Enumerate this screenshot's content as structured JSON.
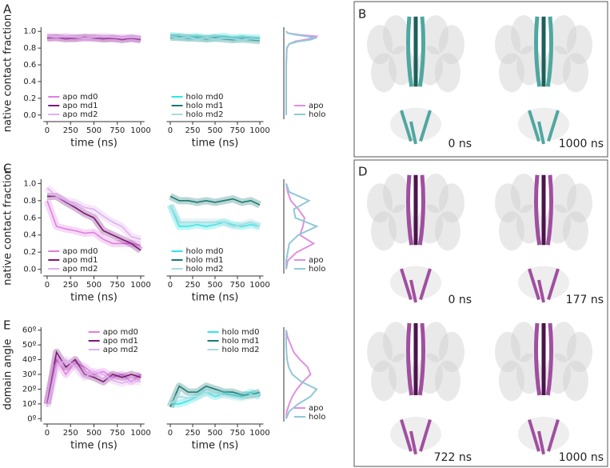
{
  "panel_labels": [
    "A",
    "B",
    "C",
    "D",
    "E"
  ],
  "structures": {
    "B": [
      "0 ns",
      "1000 ns"
    ],
    "D": [
      "0 ns",
      "177 ns",
      "722 ns",
      "1000 ns"
    ]
  },
  "chart_data": [
    {
      "type": "line",
      "x": [
        0,
        100,
        200,
        300,
        400,
        500,
        600,
        700,
        800,
        900,
        1000
      ],
      "xlim": [
        -40,
        1040
      ],
      "ylim": [
        -0.05,
        1.05
      ],
      "xticks": [
        0,
        250,
        500,
        750,
        1000
      ],
      "yticks": [
        {
          "value": 0,
          "label": "0.0"
        },
        {
          "value": 0.2,
          "label": "0.2"
        },
        {
          "value": 0.4,
          "label": "0.4"
        },
        {
          "value": 0.6,
          "label": "0.6"
        },
        {
          "value": 0.8,
          "label": "0.8"
        },
        {
          "value": 1,
          "label": "1.0"
        }
      ],
      "xlabel": "time (ns)",
      "ylabel": "native contact fraction",
      "legend": "lower left",
      "series": [
        {
          "name": "apo md0",
          "color": "#e07ee0",
          "values": [
            0.93,
            0.92,
            0.93,
            0.91,
            0.92,
            0.93,
            0.92,
            0.91,
            0.92,
            0.91,
            0.91
          ]
        },
        {
          "name": "apo md1",
          "color": "#7a1a7a",
          "values": [
            0.92,
            0.93,
            0.91,
            0.92,
            0.93,
            0.92,
            0.91,
            0.92,
            0.9,
            0.92,
            0.9
          ]
        },
        {
          "name": "apo md2",
          "color": "#e0b0f0",
          "values": [
            0.94,
            0.93,
            0.94,
            0.93,
            0.92,
            0.93,
            0.94,
            0.93,
            0.92,
            0.93,
            0.92
          ]
        }
      ]
    },
    {
      "type": "line",
      "x": [
        0,
        100,
        200,
        300,
        400,
        500,
        600,
        700,
        800,
        900,
        1000
      ],
      "xlim": [
        -40,
        1040
      ],
      "ylim": [
        -0.05,
        1.05
      ],
      "xticks": [
        0,
        250,
        500,
        750,
        1000
      ],
      "xlabel": "time (ns)",
      "legend": "lower left",
      "series": [
        {
          "name": "holo md0",
          "color": "#2ee6e6",
          "values": [
            0.95,
            0.94,
            0.93,
            0.94,
            0.92,
            0.93,
            0.94,
            0.92,
            0.93,
            0.92,
            0.92
          ]
        },
        {
          "name": "holo md1",
          "color": "#1a7a74",
          "values": [
            0.93,
            0.93,
            0.92,
            0.92,
            0.91,
            0.92,
            0.91,
            0.9,
            0.91,
            0.9,
            0.89
          ]
        },
        {
          "name": "holo md2",
          "color": "#a8dce0",
          "values": [
            0.94,
            0.92,
            0.93,
            0.91,
            0.92,
            0.91,
            0.92,
            0.91,
            0.9,
            0.91,
            0.9
          ]
        }
      ]
    },
    {
      "type": "density",
      "y": [
        0,
        0.2,
        0.4,
        0.6,
        0.8,
        0.85,
        0.88,
        0.9,
        0.92,
        0.94,
        0.96,
        0.98,
        1.0
      ],
      "xlim": [
        0,
        1.05
      ],
      "ylim": [
        -0.05,
        1.05
      ],
      "legend": "lower right",
      "series": [
        {
          "name": "apo",
          "color": "#e090e0",
          "values": [
            0,
            0,
            0,
            0,
            0.02,
            0.1,
            0.3,
            0.6,
            0.95,
            1.0,
            0.4,
            0.05,
            0
          ]
        },
        {
          "name": "holo",
          "color": "#90c8d8",
          "values": [
            0,
            0,
            0,
            0,
            0.02,
            0.1,
            0.4,
            0.8,
            0.95,
            0.7,
            0.3,
            0.05,
            0
          ]
        }
      ]
    },
    {
      "type": "line",
      "x": [
        0,
        100,
        200,
        300,
        400,
        500,
        600,
        700,
        800,
        900,
        1000
      ],
      "xlim": [
        -40,
        1040
      ],
      "ylim": [
        -0.05,
        1.05
      ],
      "xticks": [
        0,
        250,
        500,
        750,
        1000
      ],
      "yticks": [
        {
          "value": 0,
          "label": "0.0"
        },
        {
          "value": 0.2,
          "label": "0.2"
        },
        {
          "value": 0.4,
          "label": "0.4"
        },
        {
          "value": 0.6,
          "label": "0.6"
        },
        {
          "value": 0.8,
          "label": "0.8"
        },
        {
          "value": 1,
          "label": "1.0"
        }
      ],
      "xlabel": "time (ns)",
      "ylabel": "native contact fraction",
      "legend": "lower left",
      "series": [
        {
          "name": "apo md0",
          "color": "#e07ee0",
          "values": [
            0.8,
            0.5,
            0.47,
            0.45,
            0.42,
            0.43,
            0.35,
            0.3,
            0.3,
            0.3,
            0.28
          ]
        },
        {
          "name": "apo md1",
          "color": "#7a1a7a",
          "values": [
            0.85,
            0.85,
            0.78,
            0.72,
            0.65,
            0.6,
            0.45,
            0.4,
            0.35,
            0.3,
            0.22
          ]
        },
        {
          "name": "apo md2",
          "color": "#e0b0f0",
          "values": [
            0.95,
            0.85,
            0.8,
            0.78,
            0.72,
            0.7,
            0.62,
            0.55,
            0.5,
            0.38,
            0.35
          ]
        }
      ]
    },
    {
      "type": "line",
      "x": [
        0,
        100,
        200,
        300,
        400,
        500,
        600,
        700,
        800,
        900,
        1000
      ],
      "xlim": [
        -40,
        1040
      ],
      "ylim": [
        -0.05,
        1.05
      ],
      "xticks": [
        0,
        250,
        500,
        750,
        1000
      ],
      "xlabel": "time (ns)",
      "legend": "lower left",
      "series": [
        {
          "name": "holo md0",
          "color": "#2ee6e6",
          "values": [
            0.75,
            0.5,
            0.5,
            0.52,
            0.5,
            0.52,
            0.55,
            0.52,
            0.5,
            0.52,
            0.5
          ]
        },
        {
          "name": "holo md1",
          "color": "#1a7a74",
          "values": [
            0.85,
            0.8,
            0.8,
            0.78,
            0.8,
            0.78,
            0.8,
            0.82,
            0.78,
            0.8,
            0.75
          ]
        },
        {
          "name": "holo md2",
          "color": "#a8dce0",
          "values": [
            0.75,
            0.55,
            0.55,
            0.55,
            0.55,
            0.55,
            0.55,
            0.5,
            0.52,
            0.55,
            0.5
          ]
        }
      ]
    },
    {
      "type": "density",
      "y": [
        0,
        0.1,
        0.2,
        0.3,
        0.4,
        0.5,
        0.6,
        0.7,
        0.8,
        0.9,
        1.0
      ],
      "xlim": [
        0,
        1.05
      ],
      "ylim": [
        -0.05,
        1.05
      ],
      "legend": "lower right",
      "series": [
        {
          "name": "apo",
          "color": "#e090e0",
          "values": [
            0,
            0.05,
            0.35,
            0.9,
            0.45,
            0.55,
            0.6,
            0.4,
            0.15,
            0.05,
            0
          ]
        },
        {
          "name": "holo",
          "color": "#90c8d8",
          "values": [
            0,
            0,
            0.05,
            0.1,
            0.4,
            1.0,
            0.3,
            0.25,
            0.75,
            0.1,
            0
          ]
        }
      ]
    },
    {
      "type": "line",
      "x": [
        0,
        100,
        200,
        300,
        400,
        500,
        600,
        700,
        800,
        900,
        1000
      ],
      "xlim": [
        -40,
        1040
      ],
      "ylim": [
        -2,
        62
      ],
      "xticks": [
        0,
        250,
        500,
        750,
        1000
      ],
      "yticks": [
        {
          "value": 0,
          "label": "0º"
        },
        {
          "value": 10,
          "label": "10º"
        },
        {
          "value": 20,
          "label": "20º"
        },
        {
          "value": 30,
          "label": "30º"
        },
        {
          "value": 40,
          "label": "40º"
        },
        {
          "value": 50,
          "label": "50º"
        },
        {
          "value": 60,
          "label": "60º"
        }
      ],
      "xlabel": "time (ns)",
      "ylabel": "domain angle",
      "legend": "upper right",
      "series": [
        {
          "name": "apo md0",
          "color": "#e07ee0",
          "values": [
            10,
            40,
            30,
            38,
            35,
            30,
            32,
            28,
            30,
            25,
            30
          ]
        },
        {
          "name": "apo md1",
          "color": "#7a1a7a",
          "values": [
            10,
            45,
            35,
            40,
            30,
            28,
            25,
            30,
            28,
            30,
            28
          ]
        },
        {
          "name": "apo md2",
          "color": "#e0b0f0",
          "values": [
            8,
            35,
            40,
            35,
            28,
            32,
            30,
            26,
            24,
            26,
            25
          ]
        }
      ]
    },
    {
      "type": "line",
      "x": [
        0,
        100,
        200,
        300,
        400,
        500,
        600,
        700,
        800,
        900,
        1000
      ],
      "xlim": [
        -40,
        1040
      ],
      "ylim": [
        -2,
        62
      ],
      "xticks": [
        0,
        250,
        500,
        750,
        1000
      ],
      "xlabel": "time (ns)",
      "legend": "upper right",
      "series": [
        {
          "name": "holo md0",
          "color": "#2ee6e6",
          "values": [
            10,
            10,
            12,
            15,
            18,
            15,
            17,
            16,
            15,
            18,
            15
          ]
        },
        {
          "name": "holo md1",
          "color": "#1a7a74",
          "values": [
            8,
            22,
            18,
            18,
            22,
            20,
            18,
            18,
            16,
            16,
            18
          ]
        },
        {
          "name": "holo md2",
          "color": "#a8dce0",
          "values": [
            10,
            15,
            14,
            15,
            18,
            17,
            16,
            15,
            14,
            16,
            16
          ]
        }
      ]
    },
    {
      "type": "density",
      "y": [
        0,
        5,
        10,
        15,
        20,
        25,
        30,
        35,
        40,
        45,
        50,
        55,
        60
      ],
      "xlim": [
        0,
        1.05
      ],
      "ylim": [
        -2,
        62
      ],
      "legend": "lower right",
      "series": [
        {
          "name": "apo",
          "color": "#e090e0",
          "values": [
            0,
            0.02,
            0.1,
            0.2,
            0.35,
            0.55,
            0.8,
            0.7,
            0.45,
            0.25,
            0.15,
            0.05,
            0
          ]
        },
        {
          "name": "holo",
          "color": "#90c8d8",
          "values": [
            0,
            0.1,
            0.4,
            0.8,
            1.0,
            0.5,
            0.2,
            0.08,
            0.03,
            0.01,
            0,
            0,
            0
          ]
        }
      ]
    }
  ]
}
